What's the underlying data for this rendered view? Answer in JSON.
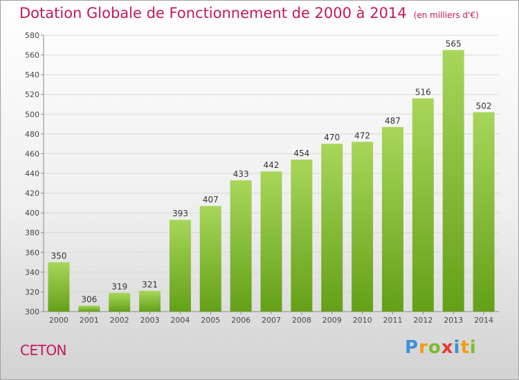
{
  "header": {
    "title": "Dotation Globale de Fonctionnement de 2000 à 2014",
    "unit": "(en milliers d'€)"
  },
  "footer": {
    "commune": "CETON",
    "logo_text": "Proxiti"
  },
  "colors": {
    "title": "#c2185b",
    "bar_light": "#a8d65a",
    "bar_dark": "#64a018",
    "grid": "#d8d8d8"
  },
  "chart_data": {
    "type": "bar",
    "title": "Dotation Globale de Fonctionnement de 2000 à 2014",
    "subtitle": "(en milliers d'€)",
    "xlabel": "",
    "ylabel": "",
    "categories": [
      "2000",
      "2001",
      "2002",
      "2003",
      "2004",
      "2005",
      "2006",
      "2007",
      "2008",
      "2009",
      "2010",
      "2011",
      "2012",
      "2013",
      "2014"
    ],
    "values": [
      350,
      306,
      319,
      321,
      393,
      407,
      433,
      442,
      454,
      470,
      472,
      487,
      516,
      565,
      502
    ],
    "ylim": [
      300,
      580
    ],
    "yticks": [
      300,
      320,
      340,
      360,
      380,
      400,
      420,
      440,
      460,
      480,
      500,
      520,
      540,
      560,
      580
    ],
    "grid": true,
    "data_labels": true
  }
}
